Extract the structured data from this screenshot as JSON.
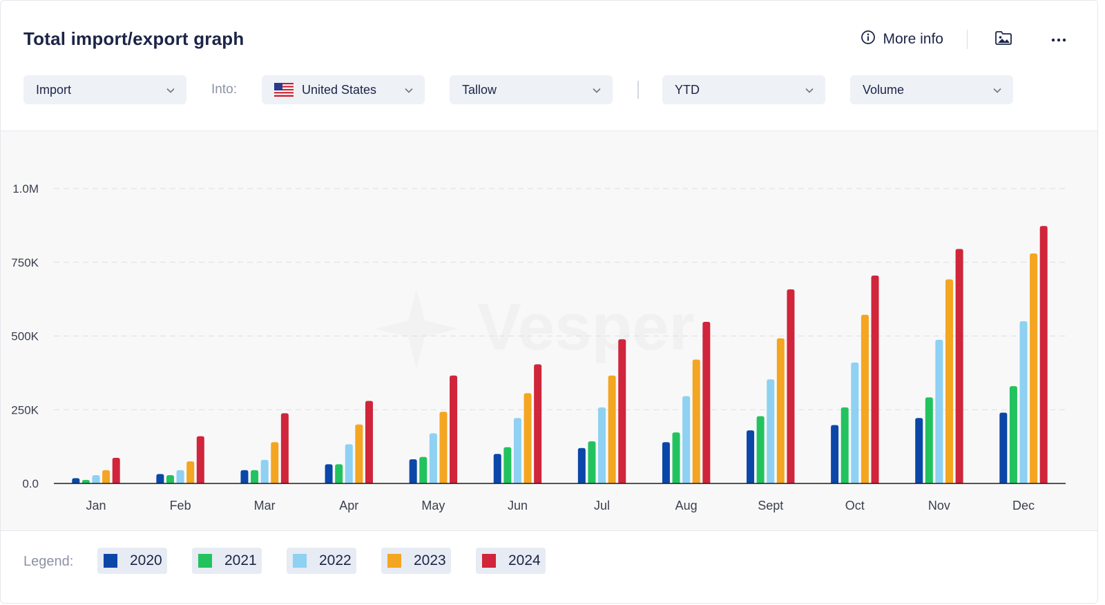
{
  "header": {
    "title": "Total import/export graph",
    "more_info_label": "More info"
  },
  "filters": {
    "direction": "Import",
    "into_label": "Into:",
    "country": "United States",
    "commodity": "Tallow",
    "period": "YTD",
    "measure": "Volume"
  },
  "watermark": "Vesper",
  "legend": {
    "label": "Legend:",
    "items": [
      {
        "name": "2020",
        "color": "#0b47a8"
      },
      {
        "name": "2021",
        "color": "#22c35e"
      },
      {
        "name": "2022",
        "color": "#8ed1f2"
      },
      {
        "name": "2023",
        "color": "#f4a521"
      },
      {
        "name": "2024",
        "color": "#d0253b"
      }
    ]
  },
  "chart_data": {
    "type": "bar",
    "categories": [
      "Jan",
      "Feb",
      "Mar",
      "Apr",
      "May",
      "Jun",
      "Jul",
      "Aug",
      "Sept",
      "Oct",
      "Nov",
      "Dec"
    ],
    "ylim": [
      0,
      1000000
    ],
    "yticks": [
      0,
      250000,
      500000,
      750000,
      1000000
    ],
    "ytick_labels": [
      "0.0",
      "250K",
      "500K",
      "750K",
      "1.0M"
    ],
    "grid": true,
    "legend_position": "bottom",
    "series": [
      {
        "name": "2020",
        "color": "#0b47a8",
        "values": [
          18000,
          32000,
          45000,
          65000,
          82000,
          100000,
          120000,
          140000,
          180000,
          198000,
          222000,
          240000
        ]
      },
      {
        "name": "2021",
        "color": "#22c35e",
        "values": [
          12000,
          28000,
          45000,
          65000,
          90000,
          123000,
          143000,
          173000,
          228000,
          258000,
          292000,
          330000
        ]
      },
      {
        "name": "2022",
        "color": "#8ed1f2",
        "values": [
          28000,
          45000,
          80000,
          133000,
          170000,
          222000,
          258000,
          296000,
          353000,
          410000,
          487000,
          550000
        ]
      },
      {
        "name": "2023",
        "color": "#f4a521",
        "values": [
          45000,
          75000,
          140000,
          200000,
          243000,
          306000,
          366000,
          420000,
          492000,
          572000,
          692000,
          780000
        ]
      },
      {
        "name": "2024",
        "color": "#d0253b",
        "values": [
          87000,
          160000,
          238000,
          280000,
          366000,
          404000,
          489000,
          548000,
          658000,
          705000,
          795000,
          873000
        ]
      }
    ]
  }
}
